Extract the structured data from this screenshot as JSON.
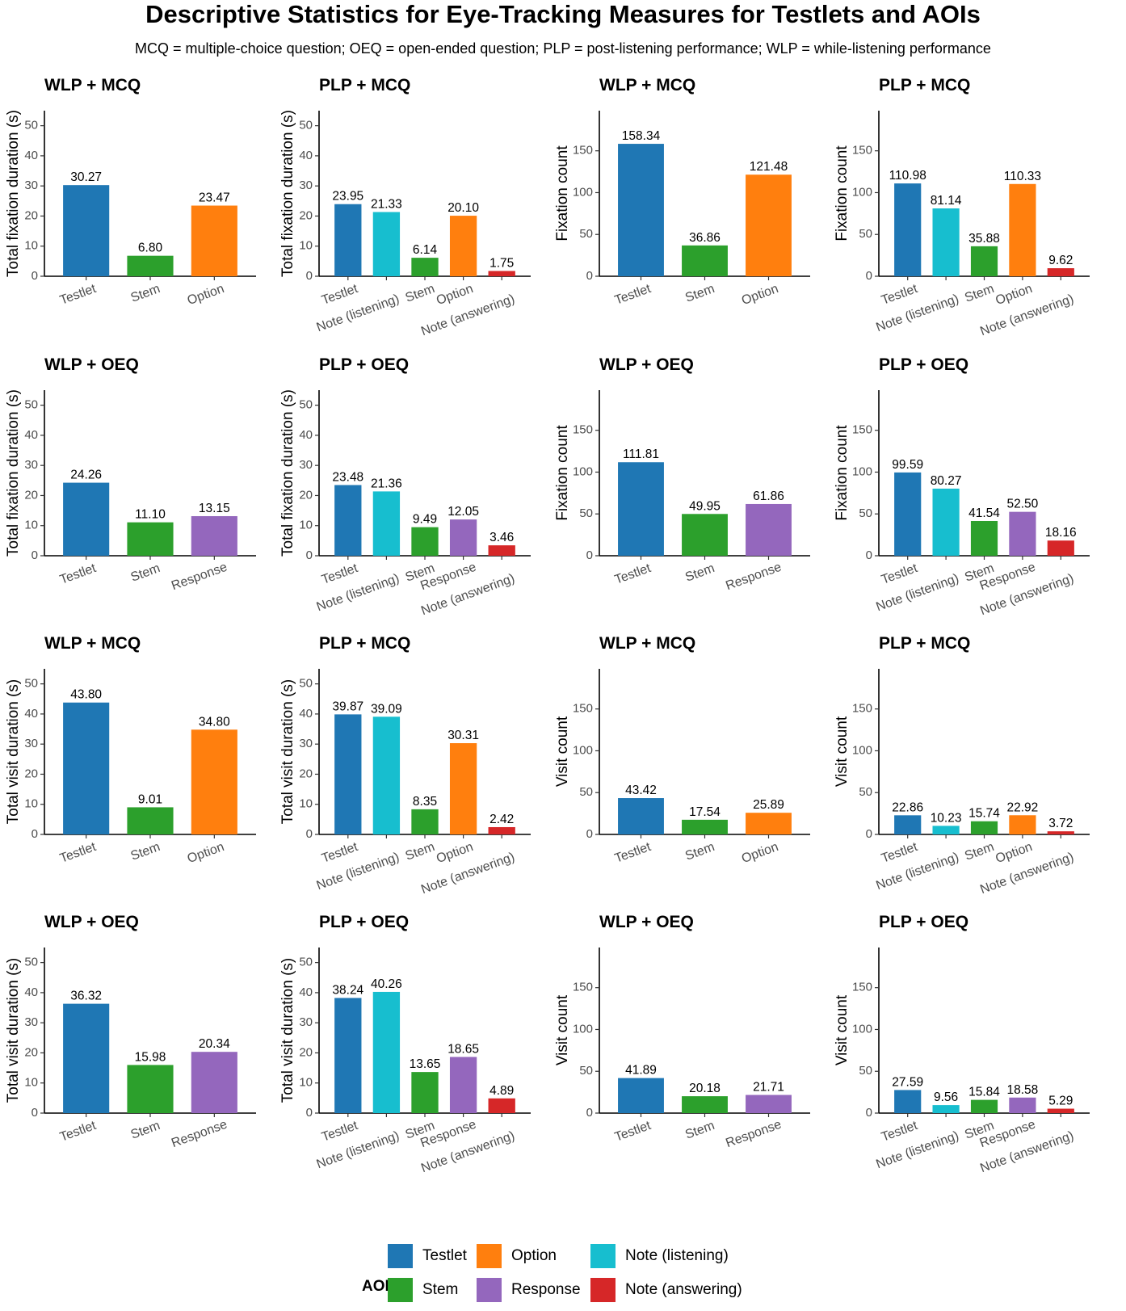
{
  "title": "Descriptive Statistics for Eye-Tracking Measures for Testlets and AOIs",
  "subtitle": "MCQ = multiple-choice question; OEQ = open-ended question; PLP = post-listening performance; WLP = while-listening performance",
  "colors": {
    "Testlet": "#1f77b4",
    "Stem": "#2ca02c",
    "Option": "#ff7f0e",
    "Response": "#9467bd",
    "Note (listening)": "#17becf",
    "Note (answering)": "#d62728"
  },
  "legend": {
    "title": "AOI",
    "items": [
      "Testlet",
      "Option",
      "Note (listening)",
      "Stem",
      "Response",
      "Note (answering)"
    ]
  },
  "chart_data": [
    {
      "type": "bar",
      "title": "WLP + MCQ",
      "ylabel": "Total fixation duration (s)",
      "ylim": [
        0,
        55
      ],
      "yticks": [
        0,
        10,
        20,
        30,
        40,
        50
      ],
      "categories": [
        "Testlet",
        "Stem",
        "Option"
      ],
      "values": [
        30.27,
        6.8,
        23.47
      ],
      "labels": [
        "30.27",
        "6.80",
        "23.47"
      ]
    },
    {
      "type": "bar",
      "title": "PLP + MCQ",
      "ylabel": "Total fixation duration (s)",
      "ylim": [
        0,
        55
      ],
      "yticks": [
        0,
        10,
        20,
        30,
        40,
        50
      ],
      "categories": [
        "Testlet",
        "Note (listening)",
        "Stem",
        "Option",
        "Note (answering)"
      ],
      "values": [
        23.95,
        21.33,
        6.14,
        20.1,
        1.75
      ],
      "labels": [
        "23.95",
        "21.33",
        "6.14",
        "20.10",
        "1.75"
      ]
    },
    {
      "type": "bar",
      "title": "WLP + MCQ",
      "ylabel": "Fixation count",
      "ylim": [
        0,
        198
      ],
      "yticks": [
        0,
        50,
        100,
        150
      ],
      "categories": [
        "Testlet",
        "Stem",
        "Option"
      ],
      "values": [
        158.34,
        36.86,
        121.48
      ],
      "labels": [
        "158.34",
        "36.86",
        "121.48"
      ]
    },
    {
      "type": "bar",
      "title": "PLP + MCQ",
      "ylabel": "Fixation count",
      "ylim": [
        0,
        198
      ],
      "yticks": [
        0,
        50,
        100,
        150
      ],
      "categories": [
        "Testlet",
        "Note (listening)",
        "Stem",
        "Option",
        "Note (answering)"
      ],
      "values": [
        110.98,
        81.14,
        35.88,
        110.33,
        9.62
      ],
      "labels": [
        "110.98",
        "81.14",
        "35.88",
        "110.33",
        "9.62"
      ]
    },
    {
      "type": "bar",
      "title": "WLP + OEQ",
      "ylabel": "Total fixation duration (s)",
      "ylim": [
        0,
        55
      ],
      "yticks": [
        0,
        10,
        20,
        30,
        40,
        50
      ],
      "categories": [
        "Testlet",
        "Stem",
        "Response"
      ],
      "values": [
        24.26,
        11.1,
        13.15
      ],
      "labels": [
        "24.26",
        "11.10",
        "13.15"
      ]
    },
    {
      "type": "bar",
      "title": "PLP + OEQ",
      "ylabel": "Total fixation duration (s)",
      "ylim": [
        0,
        55
      ],
      "yticks": [
        0,
        10,
        20,
        30,
        40,
        50
      ],
      "categories": [
        "Testlet",
        "Note (listening)",
        "Stem",
        "Response",
        "Note (answering)"
      ],
      "values": [
        23.48,
        21.36,
        9.49,
        12.05,
        3.46
      ],
      "labels": [
        "23.48",
        "21.36",
        "9.49",
        "12.05",
        "3.46"
      ]
    },
    {
      "type": "bar",
      "title": "WLP + OEQ",
      "ylabel": "Fixation count",
      "ylim": [
        0,
        198
      ],
      "yticks": [
        0,
        50,
        100,
        150
      ],
      "categories": [
        "Testlet",
        "Stem",
        "Response"
      ],
      "values": [
        111.81,
        49.95,
        61.86
      ],
      "labels": [
        "111.81",
        "49.95",
        "61.86"
      ]
    },
    {
      "type": "bar",
      "title": "PLP + OEQ",
      "ylabel": "Fixation count",
      "ylim": [
        0,
        198
      ],
      "yticks": [
        0,
        50,
        100,
        150
      ],
      "categories": [
        "Testlet",
        "Note (listening)",
        "Stem",
        "Response",
        "Note (answering)"
      ],
      "values": [
        99.59,
        80.27,
        41.54,
        52.5,
        18.16
      ],
      "labels": [
        "99.59",
        "80.27",
        "41.54",
        "52.50",
        "18.16"
      ]
    },
    {
      "type": "bar",
      "title": "WLP + MCQ",
      "ylabel": "Total visit duration (s)",
      "ylim": [
        0,
        55
      ],
      "yticks": [
        0,
        10,
        20,
        30,
        40,
        50
      ],
      "categories": [
        "Testlet",
        "Stem",
        "Option"
      ],
      "values": [
        43.8,
        9.01,
        34.8
      ],
      "labels": [
        "43.80",
        "9.01",
        "34.80"
      ]
    },
    {
      "type": "bar",
      "title": "PLP + MCQ",
      "ylabel": "Total visit duration (s)",
      "ylim": [
        0,
        55
      ],
      "yticks": [
        0,
        10,
        20,
        30,
        40,
        50
      ],
      "categories": [
        "Testlet",
        "Note (listening)",
        "Stem",
        "Option",
        "Note (answering)"
      ],
      "values": [
        39.87,
        39.09,
        8.35,
        30.31,
        2.42
      ],
      "labels": [
        "39.87",
        "39.09",
        "8.35",
        "30.31",
        "2.42"
      ]
    },
    {
      "type": "bar",
      "title": "WLP + MCQ",
      "ylabel": "Visit count",
      "ylim": [
        0,
        198
      ],
      "yticks": [
        0,
        50,
        100,
        150
      ],
      "categories": [
        "Testlet",
        "Stem",
        "Option"
      ],
      "values": [
        43.42,
        17.54,
        25.89
      ],
      "labels": [
        "43.42",
        "17.54",
        "25.89"
      ]
    },
    {
      "type": "bar",
      "title": "PLP + MCQ",
      "ylabel": "Visit count",
      "ylim": [
        0,
        198
      ],
      "yticks": [
        0,
        50,
        100,
        150
      ],
      "categories": [
        "Testlet",
        "Note (listening)",
        "Stem",
        "Option",
        "Note (answering)"
      ],
      "values": [
        22.86,
        10.23,
        15.74,
        22.92,
        3.72
      ],
      "labels": [
        "22.86",
        "10.23",
        "15.74",
        "22.92",
        "3.72"
      ]
    },
    {
      "type": "bar",
      "title": "WLP + OEQ",
      "ylabel": "Total visit duration (s)",
      "ylim": [
        0,
        55
      ],
      "yticks": [
        0,
        10,
        20,
        30,
        40,
        50
      ],
      "categories": [
        "Testlet",
        "Stem",
        "Response"
      ],
      "values": [
        36.32,
        15.98,
        20.34
      ],
      "labels": [
        "36.32",
        "15.98",
        "20.34"
      ]
    },
    {
      "type": "bar",
      "title": "PLP + OEQ",
      "ylabel": "Total visit duration (s)",
      "ylim": [
        0,
        55
      ],
      "yticks": [
        0,
        10,
        20,
        30,
        40,
        50
      ],
      "categories": [
        "Testlet",
        "Note (listening)",
        "Stem",
        "Response",
        "Note (answering)"
      ],
      "values": [
        38.24,
        40.26,
        13.65,
        18.65,
        4.89
      ],
      "labels": [
        "38.24",
        "40.26",
        "13.65",
        "18.65",
        "4.89"
      ]
    },
    {
      "type": "bar",
      "title": "WLP + OEQ",
      "ylabel": "Visit count",
      "ylim": [
        0,
        198
      ],
      "yticks": [
        0,
        50,
        100,
        150
      ],
      "categories": [
        "Testlet",
        "Stem",
        "Response"
      ],
      "values": [
        41.89,
        20.18,
        21.71
      ],
      "labels": [
        "41.89",
        "20.18",
        "21.71"
      ]
    },
    {
      "type": "bar",
      "title": "PLP + OEQ",
      "ylabel": "Visit count",
      "ylim": [
        0,
        198
      ],
      "yticks": [
        0,
        50,
        100,
        150
      ],
      "categories": [
        "Testlet",
        "Note (listening)",
        "Stem",
        "Response",
        "Note (answering)"
      ],
      "values": [
        27.59,
        9.56,
        15.84,
        18.58,
        5.29
      ],
      "labels": [
        "27.59",
        "9.56",
        "15.84",
        "18.58",
        "5.29"
      ]
    }
  ]
}
